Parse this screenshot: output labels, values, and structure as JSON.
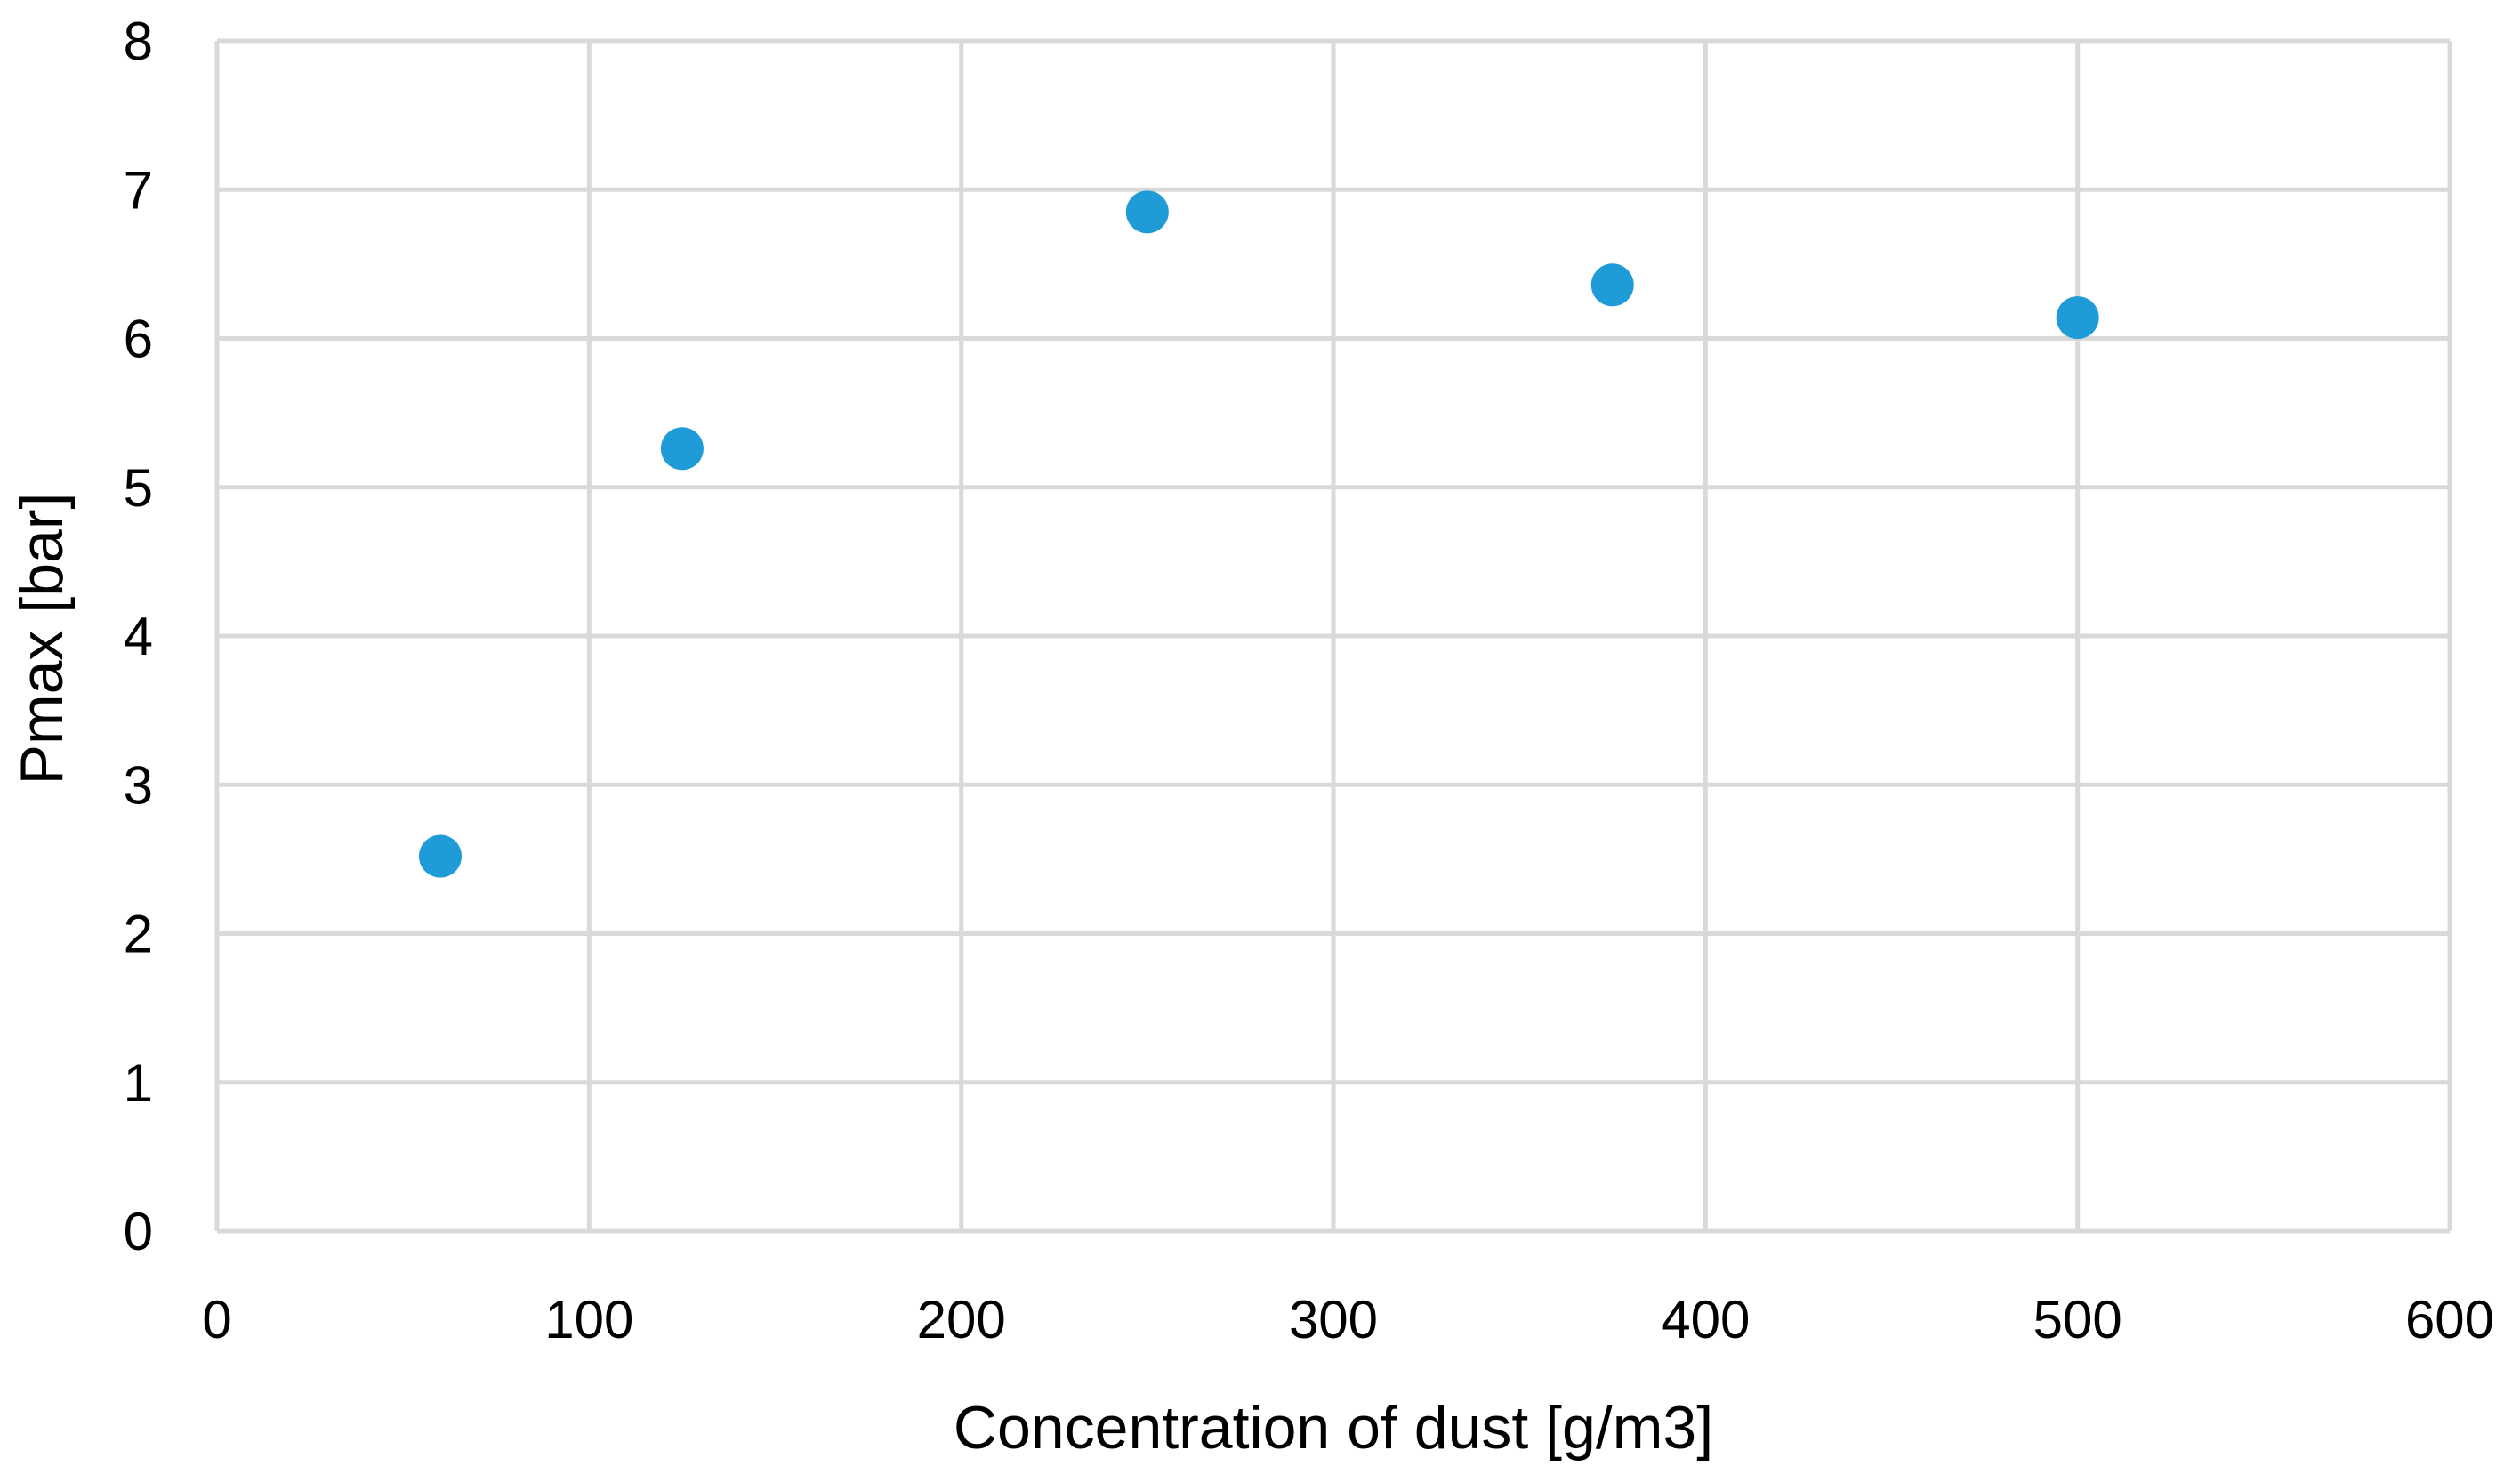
{
  "chart_data": {
    "type": "scatter",
    "title": "",
    "xlabel": "Concentration of dust [g/m3]",
    "ylabel": "Pmax [bar]",
    "xlim": [
      0,
      600
    ],
    "ylim": [
      0,
      8
    ],
    "x_ticks": [
      0,
      100,
      200,
      300,
      400,
      500,
      600
    ],
    "y_ticks": [
      0,
      1,
      2,
      3,
      4,
      5,
      6,
      7,
      8
    ],
    "grid": true,
    "legend": "none",
    "marker_color": "#1f9bd7",
    "series": [
      {
        "x": [
          60,
          125,
          250,
          375,
          500
        ],
        "y": [
          2.52,
          5.26,
          6.85,
          6.36,
          6.14
        ]
      }
    ]
  }
}
